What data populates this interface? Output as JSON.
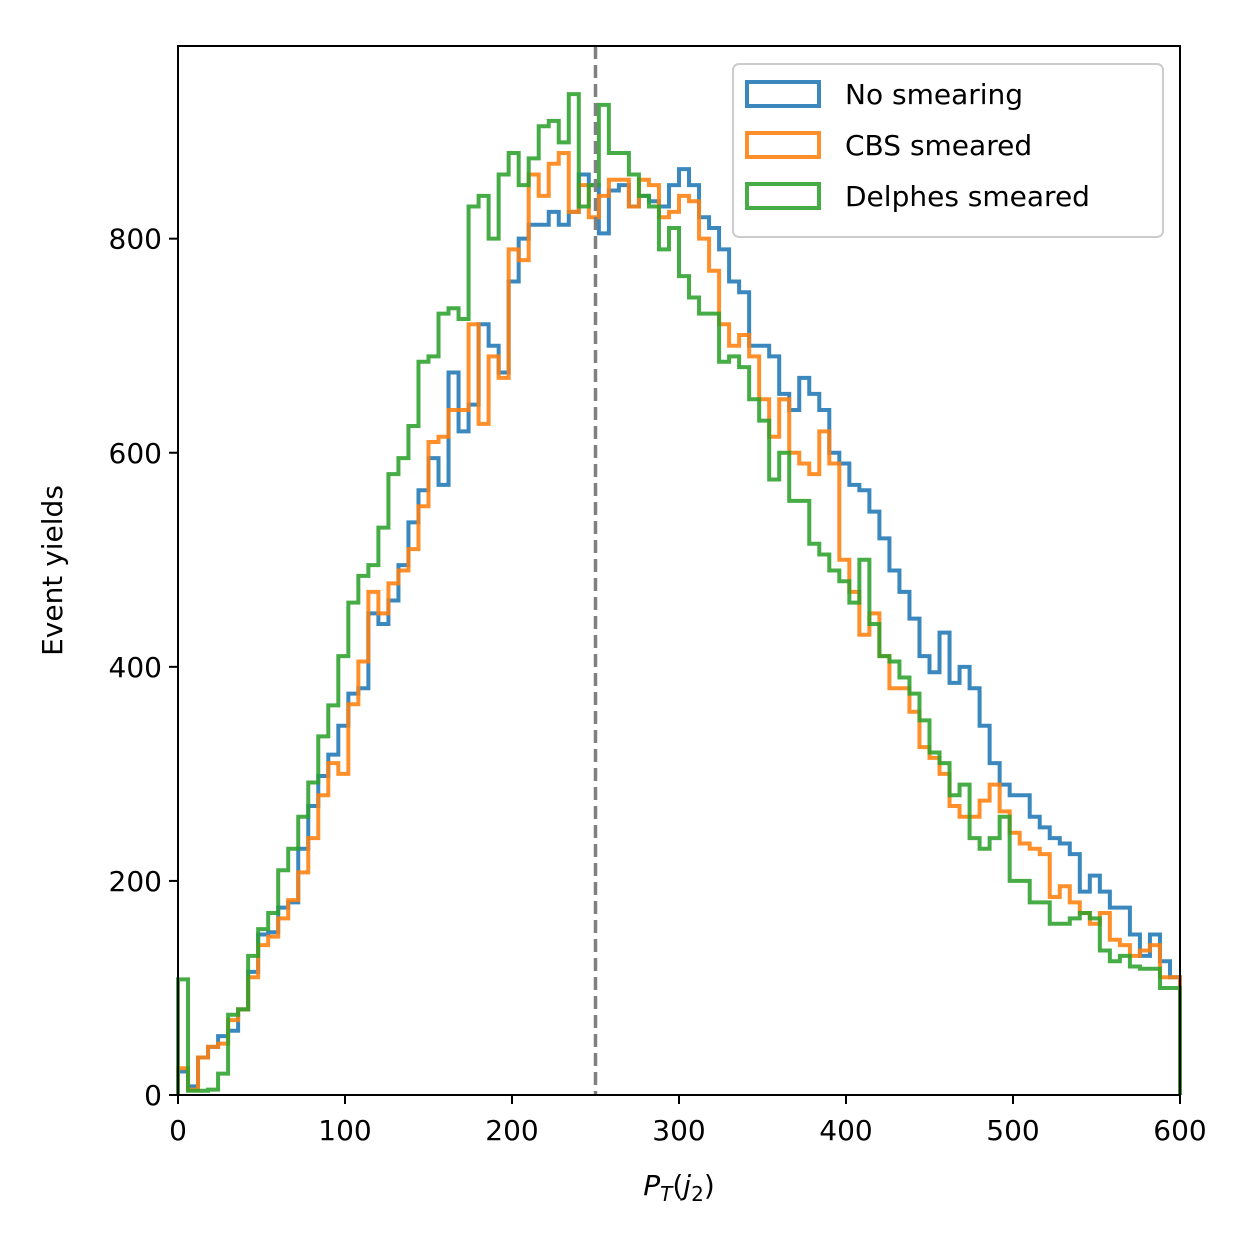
{
  "chart_data": {
    "type": "histogram-step",
    "xlabel": "P_T(j_2)",
    "xlabel_main": "P",
    "xlabel_sub": "T",
    "xlabel_paren_open": "(",
    "xlabel_j": "j",
    "xlabel_j_sub": "2",
    "xlabel_paren_close": ")",
    "ylabel": "Event yields",
    "xlim": [
      0,
      600
    ],
    "ylim": [
      0,
      980
    ],
    "xticks": [
      0,
      100,
      200,
      300,
      400,
      500,
      600
    ],
    "xtick_labels": [
      "0",
      "100",
      "200",
      "300",
      "400",
      "500",
      "600"
    ],
    "yticks": [
      0,
      200,
      400,
      600,
      800
    ],
    "ytick_labels": [
      "0",
      "200",
      "400",
      "600",
      "800"
    ],
    "vline": {
      "x": 250,
      "color": "#808080",
      "style": "dashed"
    },
    "bin_edges_range": [
      0,
      600
    ],
    "bin_count": 100,
    "legend_position": "top-right",
    "series": [
      {
        "name": "No smearing",
        "color": "#1f77b4",
        "values": [
          22,
          8,
          35,
          45,
          55,
          60,
          80,
          115,
          150,
          152,
          175,
          180,
          230,
          270,
          298,
          318,
          345,
          375,
          380,
          450,
          440,
          462,
          495,
          535,
          565,
          595,
          570,
          675,
          620,
          645,
          720,
          700,
          675,
          760,
          800,
          813,
          813,
          825,
          813,
          825,
          860,
          850,
          805,
          845,
          850,
          830,
          840,
          835,
          830,
          850,
          865,
          850,
          820,
          810,
          790,
          760,
          750,
          700,
          700,
          690,
          655,
          640,
          670,
          655,
          640,
          600,
          590,
          570,
          565,
          545,
          520,
          490,
          470,
          445,
          410,
          395,
          432,
          385,
          400,
          380,
          345,
          310,
          290,
          280,
          280,
          260,
          250,
          240,
          235,
          225,
          190,
          205,
          190,
          175,
          175,
          150,
          130,
          150,
          125,
          110
        ]
      },
      {
        "name": "CBS smeared",
        "color": "#ff7f0e",
        "values": [
          25,
          5,
          35,
          45,
          48,
          70,
          80,
          110,
          140,
          148,
          165,
          182,
          208,
          240,
          280,
          310,
          300,
          365,
          405,
          470,
          450,
          478,
          490,
          510,
          550,
          610,
          615,
          640,
          640,
          720,
          627,
          690,
          670,
          790,
          780,
          860,
          840,
          870,
          880,
          825,
          850,
          820,
          840,
          855,
          855,
          830,
          855,
          850,
          820,
          825,
          840,
          835,
          800,
          770,
          720,
          700,
          710,
          690,
          650,
          615,
          650,
          600,
          590,
          580,
          620,
          590,
          500,
          470,
          430,
          450,
          410,
          380,
          380,
          358,
          325,
          315,
          300,
          270,
          260,
          260,
          275,
          290,
          265,
          245,
          235,
          230,
          225,
          185,
          195,
          180,
          170,
          160,
          170,
          145,
          140,
          130,
          135,
          140,
          110,
          110
        ]
      },
      {
        "name": "Delphes smeared",
        "color": "#2ca02c",
        "values": [
          108,
          4,
          4,
          5,
          20,
          75,
          80,
          130,
          155,
          170,
          210,
          230,
          260,
          292,
          335,
          364,
          410,
          460,
          485,
          495,
          530,
          580,
          595,
          625,
          685,
          690,
          730,
          735,
          725,
          830,
          840,
          800,
          860,
          880,
          850,
          875,
          905,
          910,
          890,
          935,
          830,
          850,
          925,
          880,
          880,
          860,
          840,
          830,
          790,
          810,
          765,
          745,
          730,
          730,
          685,
          690,
          680,
          650,
          630,
          575,
          600,
          555,
          555,
          515,
          505,
          490,
          480,
          460,
          500,
          440,
          410,
          405,
          390,
          375,
          350,
          320,
          310,
          280,
          290,
          240,
          230,
          240,
          260,
          200,
          200,
          180,
          180,
          160,
          160,
          165,
          170,
          165,
          135,
          125,
          130,
          120,
          118,
          118,
          100,
          100
        ]
      }
    ]
  }
}
